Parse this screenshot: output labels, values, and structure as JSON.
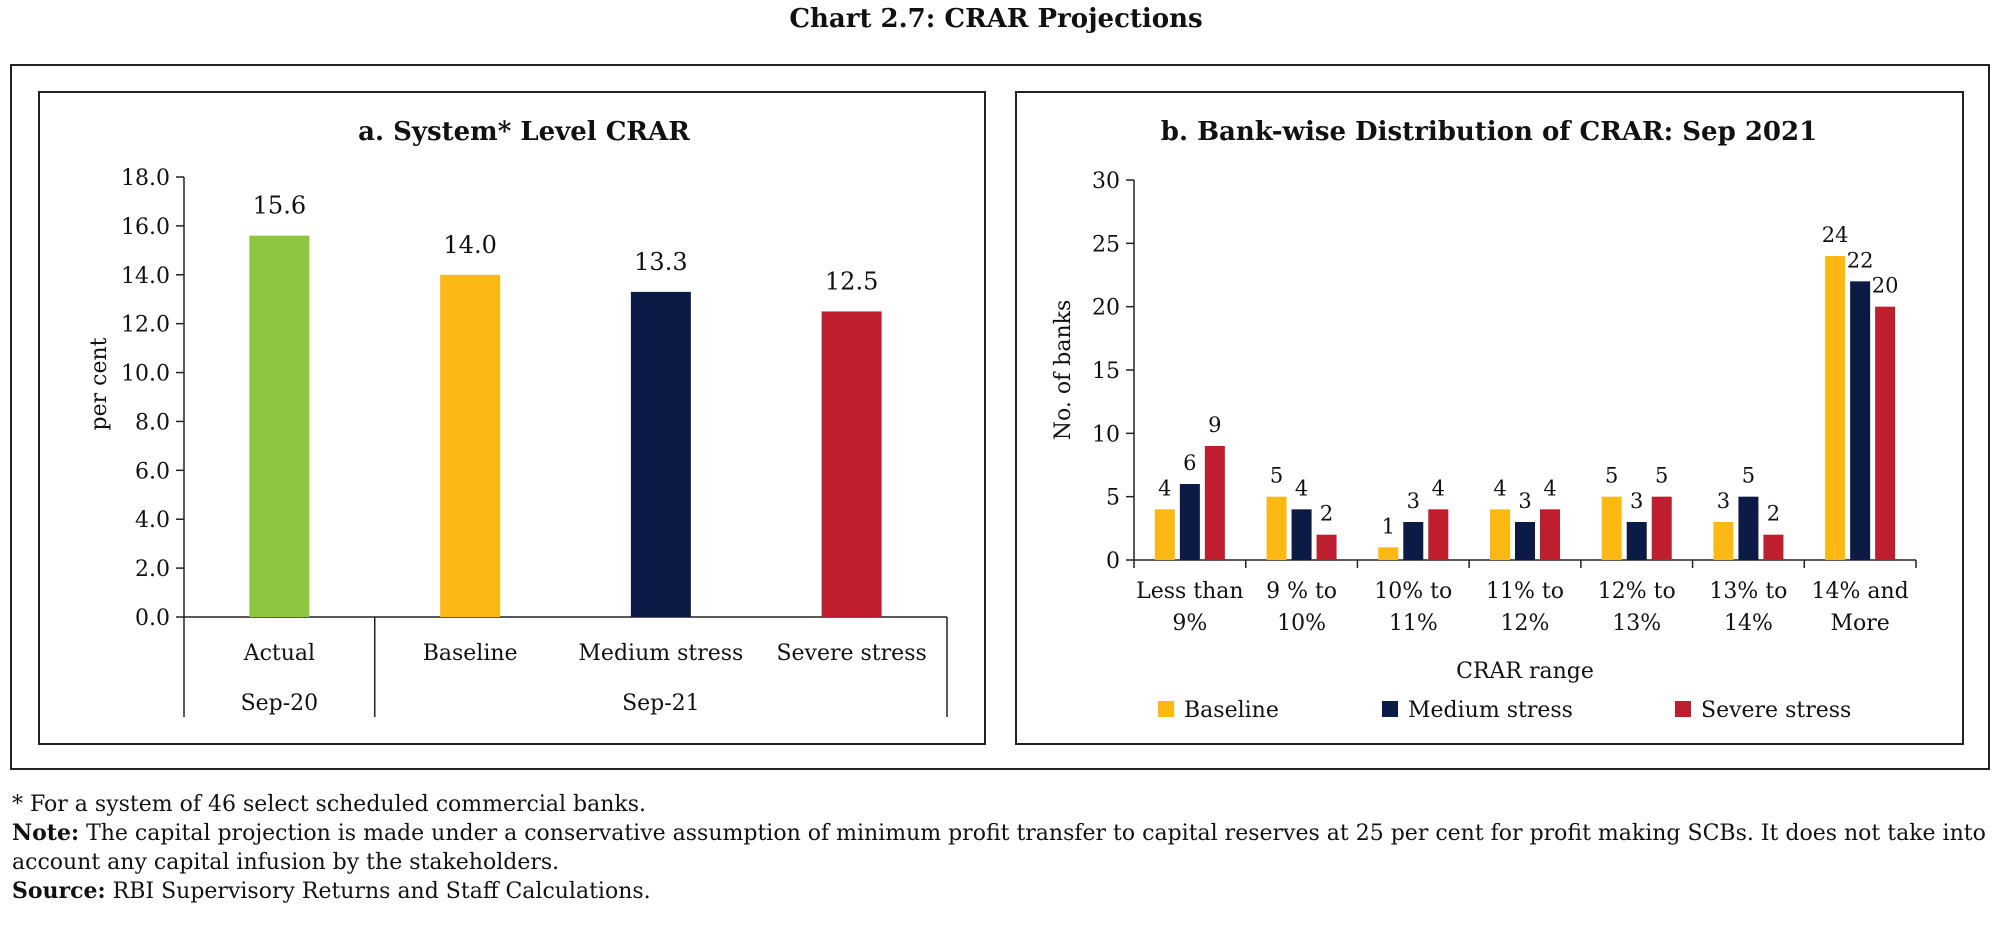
{
  "title": "Chart 2.7: CRAR Projections",
  "colors": {
    "actual": "#8DC63F",
    "baseline": "#FDB913",
    "medium": "#0B1B45",
    "severe": "#BE1E2D",
    "axis": "#222222"
  },
  "chart_data": [
    {
      "type": "bar",
      "title": "a. System* Level CRAR",
      "ylabel": "per cent",
      "xlabel": "",
      "ylim": [
        0,
        18
      ],
      "yticks": [
        "0.0",
        "2.0",
        "4.0",
        "6.0",
        "8.0",
        "10.0",
        "12.0",
        "14.0",
        "16.0",
        "18.0"
      ],
      "categories": [
        "Actual",
        "Baseline",
        "Medium stress",
        "Severe stress"
      ],
      "groups": [
        {
          "label": "Sep-20",
          "span": 1
        },
        {
          "label": "Sep-21",
          "span": 3
        }
      ],
      "values": [
        15.6,
        14.0,
        13.3,
        12.5
      ],
      "value_labels": [
        "15.6",
        "14.0",
        "13.3",
        "12.5"
      ],
      "bar_colors": [
        "actual",
        "baseline",
        "medium",
        "severe"
      ],
      "grid": false
    },
    {
      "type": "bar",
      "title": "b. Bank-wise Distribution of CRAR: Sep 2021",
      "ylabel": "No. of banks",
      "xlabel": "CRAR range",
      "ylim": [
        0,
        30
      ],
      "yticks": [
        "0",
        "5",
        "10",
        "15",
        "20",
        "25",
        "30"
      ],
      "categories": [
        [
          "Less than",
          "9%"
        ],
        [
          "9 % to",
          "10%"
        ],
        [
          "10% to",
          "11%"
        ],
        [
          "11% to",
          "12%"
        ],
        [
          "12% to",
          "13%"
        ],
        [
          "13% to",
          "14%"
        ],
        [
          "14% and",
          "More"
        ]
      ],
      "series": [
        {
          "name": "Baseline",
          "color": "baseline",
          "values": [
            4,
            5,
            1,
            4,
            5,
            3,
            24
          ]
        },
        {
          "name": "Medium stress",
          "color": "medium",
          "values": [
            6,
            4,
            3,
            3,
            3,
            5,
            22
          ]
        },
        {
          "name": "Severe stress",
          "color": "severe",
          "values": [
            9,
            2,
            4,
            4,
            5,
            2,
            20
          ]
        }
      ],
      "legend_position": "bottom",
      "grid": false
    }
  ],
  "notes": {
    "footnote": "* For a system of 46 select scheduled commercial banks.",
    "note_label": "Note:",
    "note_text": " The capital projection is made under a conservative assumption of minimum profit transfer to capital reserves at 25 per cent for profit making SCBs. It does not take into account any capital infusion by the stakeholders.",
    "source_label": "Source:",
    "source_text": " RBI Supervisory Returns and Staff Calculations."
  }
}
